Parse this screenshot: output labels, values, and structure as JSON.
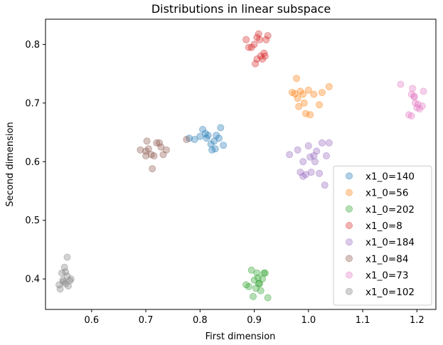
{
  "chart_data": {
    "type": "scatter",
    "title": "Distributions in linear subspace",
    "xlabel": "First dimension",
    "ylabel": "Second dimension",
    "xlim": [
      0.515,
      1.235
    ],
    "ylim": [
      0.348,
      0.843
    ],
    "xticks": [
      0.6,
      0.7,
      0.8,
      0.9,
      1.0,
      1.1,
      1.2
    ],
    "xtick_labels": [
      "0.6",
      "0.7",
      "0.8",
      "0.9",
      "1.0",
      "1.1",
      "1.2"
    ],
    "yticks": [
      0.4,
      0.5,
      0.6,
      0.7,
      0.8
    ],
    "ytick_labels": [
      "0.4",
      "0.5",
      "0.6",
      "0.7",
      "0.8"
    ],
    "grid": false,
    "legend_position": "lower-right",
    "point_alpha": 0.35,
    "series": [
      {
        "name": "x1_0=140",
        "color": "#1f77b4",
        "points": [
          [
            0.78,
            0.64
          ],
          [
            0.79,
            0.638
          ],
          [
            0.8,
            0.643
          ],
          [
            0.805,
            0.655
          ],
          [
            0.81,
            0.648
          ],
          [
            0.812,
            0.64
          ],
          [
            0.815,
            0.645
          ],
          [
            0.82,
            0.63
          ],
          [
            0.822,
            0.62
          ],
          [
            0.828,
            0.622
          ],
          [
            0.83,
            0.645
          ],
          [
            0.835,
            0.64
          ],
          [
            0.838,
            0.658
          ],
          [
            0.843,
            0.628
          ],
          [
            0.826,
            0.635
          ]
        ]
      },
      {
        "name": "x1_0=56",
        "color": "#ff7f0e",
        "points": [
          [
            0.97,
            0.718
          ],
          [
            0.975,
            0.716
          ],
          [
            0.978,
            0.742
          ],
          [
            0.98,
            0.708
          ],
          [
            0.982,
            0.694
          ],
          [
            0.985,
            0.72
          ],
          [
            0.99,
            0.715
          ],
          [
            0.992,
            0.7
          ],
          [
            0.995,
            0.682
          ],
          [
            1.0,
            0.722
          ],
          [
            1.003,
            0.68
          ],
          [
            1.01,
            0.715
          ],
          [
            1.02,
            0.697
          ],
          [
            1.025,
            0.718
          ],
          [
            1.038,
            0.728
          ]
        ]
      },
      {
        "name": "x1_0=202",
        "color": "#2ca02c",
        "points": [
          [
            0.885,
            0.39
          ],
          [
            0.89,
            0.387
          ],
          [
            0.895,
            0.415
          ],
          [
            0.898,
            0.37
          ],
          [
            0.9,
            0.398
          ],
          [
            0.903,
            0.384
          ],
          [
            0.905,
            0.41
          ],
          [
            0.907,
            0.402
          ],
          [
            0.91,
            0.392
          ],
          [
            0.912,
            0.38
          ],
          [
            0.915,
            0.4
          ],
          [
            0.918,
            0.41
          ],
          [
            0.92,
            0.41
          ],
          [
            0.925,
            0.368
          ],
          [
            0.908,
            0.392
          ]
        ]
      },
      {
        "name": "x1_0=8",
        "color": "#d62728",
        "points": [
          [
            0.885,
            0.808
          ],
          [
            0.89,
            0.795
          ],
          [
            0.895,
            0.795
          ],
          [
            0.9,
            0.8
          ],
          [
            0.902,
            0.767
          ],
          [
            0.905,
            0.812
          ],
          [
            0.908,
            0.818
          ],
          [
            0.91,
            0.808
          ],
          [
            0.912,
            0.78
          ],
          [
            0.915,
            0.775
          ],
          [
            0.918,
            0.785
          ],
          [
            0.92,
            0.78
          ],
          [
            0.922,
            0.808
          ],
          [
            0.925,
            0.815
          ],
          [
            0.905,
            0.775
          ]
        ]
      },
      {
        "name": "x1_0=184",
        "color": "#9467bd",
        "points": [
          [
            0.965,
            0.612
          ],
          [
            0.98,
            0.62
          ],
          [
            0.985,
            0.582
          ],
          [
            0.99,
            0.6
          ],
          [
            0.995,
            0.578
          ],
          [
            1.0,
            0.627
          ],
          [
            1.003,
            0.608
          ],
          [
            1.005,
            0.582
          ],
          [
            1.01,
            0.61
          ],
          [
            1.012,
            0.6
          ],
          [
            1.015,
            0.618
          ],
          [
            1.02,
            0.58
          ],
          [
            1.025,
            0.632
          ],
          [
            1.03,
            0.56
          ],
          [
            1.033,
            0.61
          ],
          [
            1.038,
            0.632
          ],
          [
            0.99,
            0.575
          ]
        ]
      },
      {
        "name": "x1_0=84",
        "color": "#8c564b",
        "points": [
          [
            0.69,
            0.62
          ],
          [
            0.7,
            0.61
          ],
          [
            0.702,
            0.635
          ],
          [
            0.705,
            0.622
          ],
          [
            0.71,
            0.612
          ],
          [
            0.712,
            0.588
          ],
          [
            0.715,
            0.61
          ],
          [
            0.72,
            0.632
          ],
          [
            0.725,
            0.632
          ],
          [
            0.728,
            0.625
          ],
          [
            0.732,
            0.612
          ],
          [
            0.738,
            0.62
          ],
          [
            0.775,
            0.638
          ],
          [
            0.7,
            0.618
          ]
        ]
      },
      {
        "name": "x1_0=73",
        "color": "#e377c2",
        "points": [
          [
            1.17,
            0.732
          ],
          [
            1.185,
            0.68
          ],
          [
            1.19,
            0.715
          ],
          [
            1.192,
            0.725
          ],
          [
            1.195,
            0.712
          ],
          [
            1.197,
            0.7
          ],
          [
            1.2,
            0.692
          ],
          [
            1.202,
            0.698
          ],
          [
            1.205,
            0.69
          ],
          [
            1.21,
            0.695
          ],
          [
            1.212,
            0.72
          ],
          [
            1.19,
            0.678
          ],
          [
            1.195,
            0.71
          ]
        ]
      },
      {
        "name": "x1_0=102",
        "color": "#7f7f7f",
        "points": [
          [
            0.54,
            0.39
          ],
          [
            0.542,
            0.383
          ],
          [
            0.545,
            0.41
          ],
          [
            0.547,
            0.398
          ],
          [
            0.55,
            0.42
          ],
          [
            0.552,
            0.392
          ],
          [
            0.555,
            0.405
          ],
          [
            0.557,
            0.388
          ],
          [
            0.56,
            0.397
          ],
          [
            0.562,
            0.4
          ],
          [
            0.555,
            0.437
          ],
          [
            0.548,
            0.395
          ],
          [
            0.552,
            0.412
          ]
        ]
      }
    ]
  }
}
